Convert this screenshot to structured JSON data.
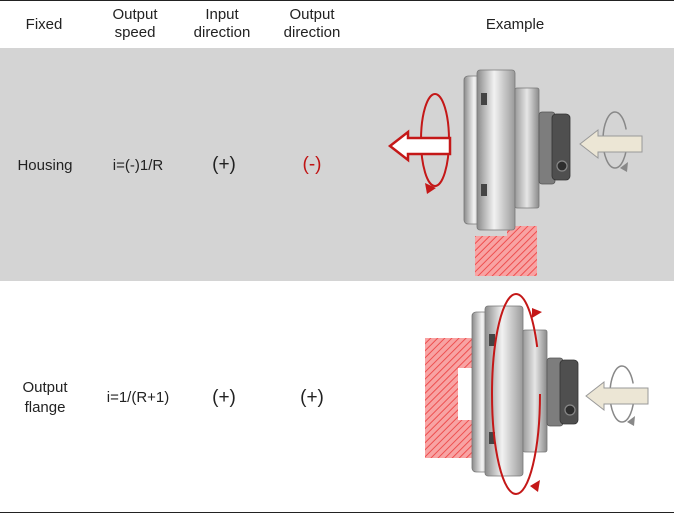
{
  "header": {
    "fixed": "Fixed",
    "output_speed": [
      "Output",
      "speed"
    ],
    "input_direction": [
      "Input",
      "direction"
    ],
    "output_direction": [
      "Output",
      "direction"
    ],
    "example": "Example"
  },
  "rows": [
    {
      "fixed": [
        "Housing"
      ],
      "output_speed": "i=(-)1/R",
      "input_direction": "(+)",
      "output_direction": "(-)"
    },
    {
      "fixed": [
        "Output",
        "flange"
      ],
      "output_speed": "i=1/(R+1)",
      "input_direction": "(+)",
      "output_direction": "(+)"
    }
  ],
  "colors": {
    "row1_bg": "#d4d4d4",
    "negative_direction": "#c01515",
    "hatch": "#f06b6b"
  }
}
